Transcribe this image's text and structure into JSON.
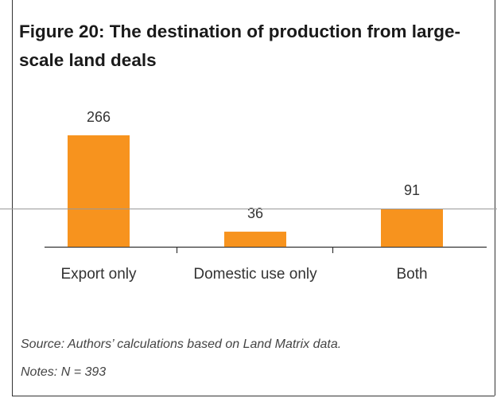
{
  "chart_data": {
    "type": "bar",
    "title": "Figure 20: The destination of production from large-scale land deals",
    "categories": [
      "Export only",
      "Domestic use only",
      "Both"
    ],
    "values": [
      266,
      36,
      91
    ],
    "color": "#f7931e",
    "source": "Source: Authors’ calculations based on Land Matrix data.",
    "notes": "Notes: N = 393"
  }
}
